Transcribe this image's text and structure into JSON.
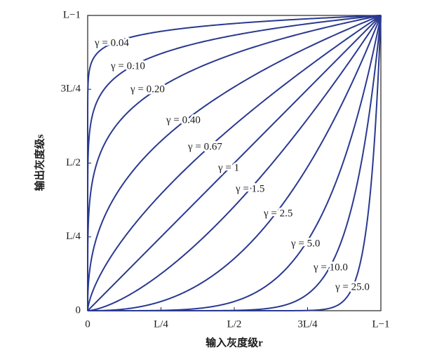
{
  "chart_data": {
    "type": "line",
    "xlabel": "输入灰度级r",
    "ylabel": "输出灰度级s",
    "xlim": [
      0,
      1
    ],
    "ylim": [
      0,
      1
    ],
    "xticks": [
      0,
      {
        "value": 0.25,
        "label": "L/4"
      },
      {
        "value": 0.5,
        "label": "L/2"
      },
      {
        "value": 0.75,
        "label": "3L/4"
      },
      {
        "value": 1,
        "label": "L−1"
      }
    ],
    "yticks": [
      0,
      {
        "value": 0.25,
        "label": "L/4"
      },
      {
        "value": 0.5,
        "label": "L/2"
      },
      {
        "value": 0.75,
        "label": "3L/4"
      },
      {
        "value": 1,
        "label": "L−1"
      }
    ],
    "color": "#2a3990",
    "series": [
      {
        "name": "γ = 0.04",
        "gamma": 0.04
      },
      {
        "name": "γ = 0.10",
        "gamma": 0.1
      },
      {
        "name": "γ = 0.20",
        "gamma": 0.2
      },
      {
        "name": "γ = 0.40",
        "gamma": 0.4
      },
      {
        "name": "γ = 0.67",
        "gamma": 0.67
      },
      {
        "name": "γ = 1",
        "gamma": 1
      },
      {
        "name": "γ = 1.5",
        "gamma": 1.5
      },
      {
        "name": "γ = 2.5",
        "gamma": 2.5
      },
      {
        "name": "γ = 5.0",
        "gamma": 5
      },
      {
        "name": "γ = 10.0",
        "gamma": 10
      },
      {
        "name": "γ = 25.0",
        "gamma": 25
      }
    ]
  }
}
